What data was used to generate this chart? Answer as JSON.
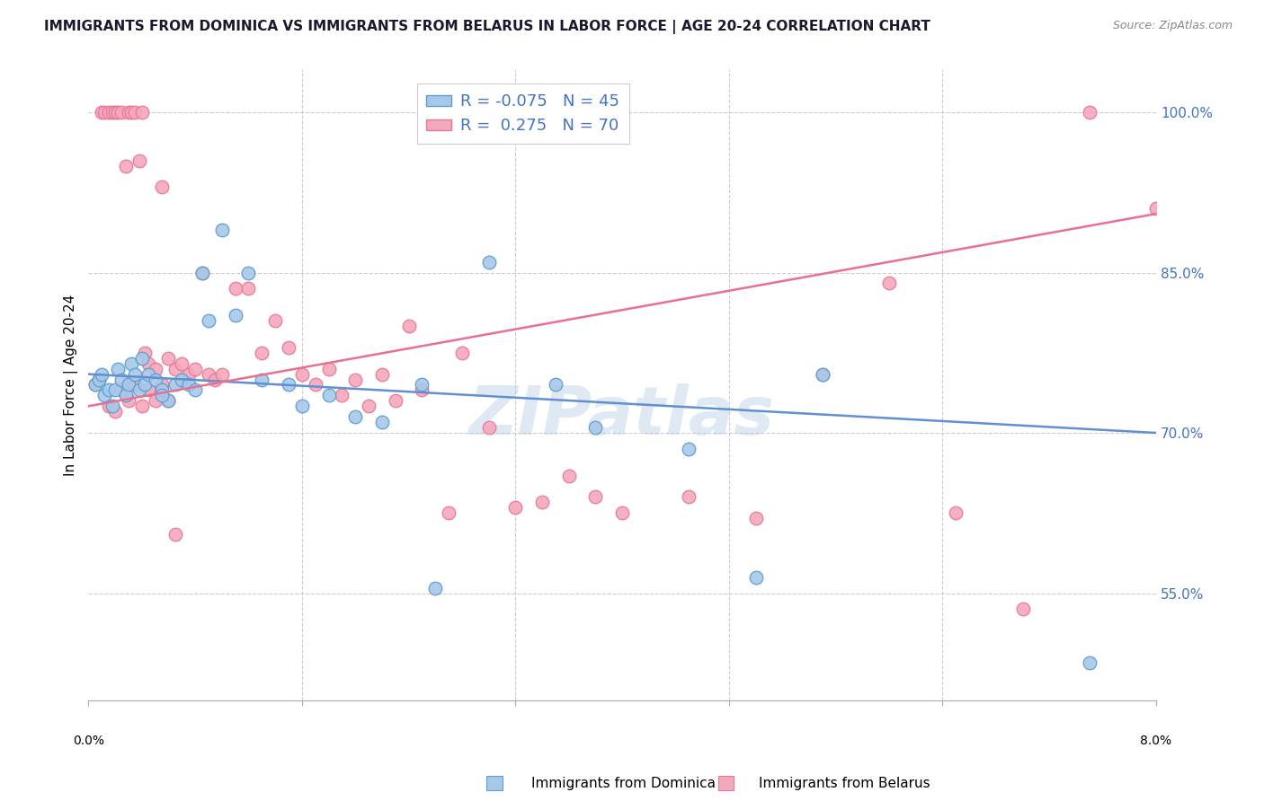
{
  "title": "IMMIGRANTS FROM DOMINICA VS IMMIGRANTS FROM BELARUS IN LABOR FORCE | AGE 20-24 CORRELATION CHART",
  "source": "Source: ZipAtlas.com",
  "ylabel": "In Labor Force | Age 20-24",
  "yticks": [
    55.0,
    70.0,
    85.0,
    100.0
  ],
  "ytick_labels": [
    "55.0%",
    "70.0%",
    "85.0%",
    "100.0%"
  ],
  "xlim": [
    0.0,
    8.0
  ],
  "ylim": [
    45.0,
    104.0
  ],
  "legend_R_dominica": "-0.075",
  "legend_N_dominica": "45",
  "legend_R_belarus": " 0.275",
  "legend_N_belarus": "70",
  "dominica_color": "#a8c8e8",
  "belarus_color": "#f4a8bc",
  "dominica_edge_color": "#5a9fd4",
  "belarus_edge_color": "#e8789a",
  "dominica_line_color": "#6090d0",
  "belarus_line_color": "#e87090",
  "watermark": "ZIPatlas",
  "dom_line_x0": 0.0,
  "dom_line_y0": 75.5,
  "dom_line_x1": 8.0,
  "dom_line_y1": 70.0,
  "bel_line_x0": 0.0,
  "bel_line_y0": 72.5,
  "bel_line_x1": 8.0,
  "bel_line_y1": 90.5,
  "dominica_points_x": [
    0.05,
    0.08,
    0.1,
    0.12,
    0.15,
    0.18,
    0.2,
    0.22,
    0.25,
    0.28,
    0.3,
    0.32,
    0.35,
    0.38,
    0.4,
    0.42,
    0.45,
    0.5,
    0.55,
    0.6,
    0.65,
    0.7,
    0.75,
    0.8,
    0.85,
    0.9,
    1.0,
    1.1,
    1.2,
    1.3,
    1.5,
    1.6,
    1.8,
    2.0,
    2.2,
    2.5,
    2.6,
    3.0,
    3.5,
    3.8,
    4.5,
    5.0,
    5.5,
    7.5,
    0.55
  ],
  "dominica_points_y": [
    74.5,
    75.0,
    75.5,
    73.5,
    74.0,
    72.5,
    74.0,
    76.0,
    75.0,
    73.5,
    74.5,
    76.5,
    75.5,
    74.0,
    77.0,
    74.5,
    75.5,
    75.0,
    74.0,
    73.0,
    74.5,
    75.0,
    74.5,
    74.0,
    85.0,
    80.5,
    89.0,
    81.0,
    85.0,
    75.0,
    74.5,
    72.5,
    73.5,
    71.5,
    71.0,
    74.5,
    55.5,
    86.0,
    74.5,
    70.5,
    68.5,
    56.5,
    75.5,
    48.5,
    73.5
  ],
  "belarus_points_x": [
    0.05,
    0.08,
    0.1,
    0.12,
    0.15,
    0.18,
    0.2,
    0.22,
    0.25,
    0.28,
    0.3,
    0.32,
    0.35,
    0.38,
    0.4,
    0.42,
    0.45,
    0.5,
    0.55,
    0.6,
    0.65,
    0.7,
    0.75,
    0.8,
    0.85,
    0.9,
    0.95,
    1.0,
    1.1,
    1.2,
    1.3,
    1.4,
    1.5,
    1.6,
    1.7,
    1.8,
    1.9,
    2.0,
    2.1,
    2.2,
    2.3,
    2.4,
    2.5,
    2.7,
    2.8,
    3.0,
    3.2,
    3.4,
    3.6,
    3.8,
    4.0,
    4.5,
    5.0,
    5.5,
    6.0,
    6.5,
    7.0,
    7.5,
    8.0,
    0.15,
    0.2,
    0.25,
    0.3,
    0.35,
    0.4,
    0.45,
    0.5,
    0.55,
    0.6,
    0.65
  ],
  "belarus_points_y": [
    74.5,
    75.0,
    100.0,
    100.0,
    100.0,
    100.0,
    100.0,
    100.0,
    100.0,
    95.0,
    100.0,
    100.0,
    100.0,
    95.5,
    100.0,
    77.5,
    76.5,
    76.0,
    93.0,
    77.0,
    76.0,
    76.5,
    75.5,
    76.0,
    85.0,
    75.5,
    75.0,
    75.5,
    83.5,
    83.5,
    77.5,
    80.5,
    78.0,
    75.5,
    74.5,
    76.0,
    73.5,
    75.0,
    72.5,
    75.5,
    73.0,
    80.0,
    74.0,
    62.5,
    77.5,
    70.5,
    63.0,
    63.5,
    66.0,
    64.0,
    62.5,
    64.0,
    62.0,
    75.5,
    84.0,
    62.5,
    53.5,
    100.0,
    91.0,
    72.5,
    72.0,
    74.0,
    73.0,
    74.5,
    72.5,
    74.0,
    73.0,
    74.5,
    73.0,
    60.5
  ]
}
